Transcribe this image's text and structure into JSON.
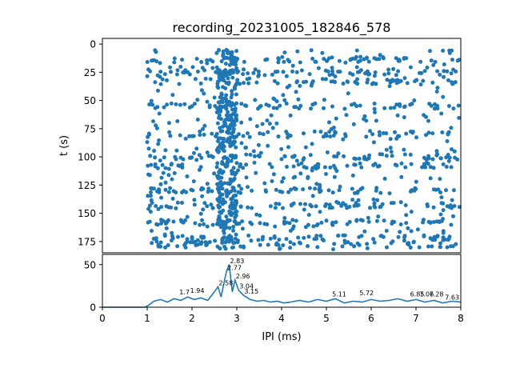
{
  "colors": {
    "series": "#1f77b4",
    "axis": "#000000",
    "background": "#ffffff"
  },
  "chart_data": [
    {
      "type": "scatter",
      "title": "recording_20231005_182846_578",
      "xlabel": "",
      "ylabel": "t (s)",
      "xlim": [
        0,
        8
      ],
      "ylim": [
        185,
        -5
      ],
      "y_inverted": true,
      "yticks": [
        "0",
        "25",
        "50",
        "75",
        "100",
        "125",
        "150",
        "175"
      ],
      "grid": false,
      "legend": "none",
      "x_range_of_points": [
        1,
        8
      ],
      "bands_t": [
        14,
        25,
        33,
        55,
        80,
        100,
        108,
        130,
        143,
        158,
        172,
        178
      ],
      "dense_x_window": [
        2.55,
        3.0
      ]
    },
    {
      "type": "line",
      "xlabel": "IPI (ms)",
      "ylabel": "",
      "xlim": [
        0,
        8
      ],
      "ylim": [
        0,
        62
      ],
      "xticks": [
        "0",
        "1",
        "2",
        "3",
        "4",
        "5",
        "6",
        "7",
        "8"
      ],
      "yticks": [
        "0",
        "50"
      ],
      "grid": false,
      "legend": "none",
      "x": [
        0,
        0.5,
        0.95,
        1.05,
        1.15,
        1.3,
        1.45,
        1.6,
        1.75,
        1.9,
        2.05,
        2.2,
        2.35,
        2.5,
        2.58,
        2.65,
        2.72,
        2.77,
        2.83,
        2.9,
        2.96,
        3.04,
        3.15,
        3.3,
        3.45,
        3.6,
        3.75,
        3.9,
        4.05,
        4.2,
        4.4,
        4.6,
        4.8,
        5.0,
        5.2,
        5.4,
        5.6,
        5.8,
        6.0,
        6.2,
        6.4,
        6.6,
        6.8,
        7.0,
        7.2,
        7.4,
        7.6,
        7.8,
        8.0
      ],
      "y": [
        0,
        0,
        0,
        3,
        7,
        9,
        6,
        10,
        8,
        12,
        9,
        11,
        8,
        18,
        24,
        12,
        30,
        42,
        50,
        18,
        32,
        20,
        14,
        9,
        7,
        8,
        6,
        7,
        5,
        6,
        8,
        6,
        9,
        7,
        10,
        5,
        7,
        6,
        9,
        7,
        8,
        10,
        7,
        9,
        6,
        8,
        5,
        7,
        6
      ],
      "peak_labels": [
        {
          "x": 2.83,
          "y": 50,
          "label": "2.83"
        },
        {
          "x": 2.77,
          "y": 42,
          "label": "2.77"
        },
        {
          "x": 2.96,
          "y": 32,
          "label": "2.96"
        },
        {
          "x": 2.58,
          "y": 24,
          "label": "2.58"
        },
        {
          "x": 3.04,
          "y": 20,
          "label": "3.04"
        },
        {
          "x": 3.15,
          "y": 14,
          "label": "3.15"
        },
        {
          "x": 1.7,
          "y": 13,
          "label": "1.7"
        },
        {
          "x": 1.94,
          "y": 15,
          "label": "1.94"
        },
        {
          "x": 5.11,
          "y": 11,
          "label": "5.11"
        },
        {
          "x": 5.72,
          "y": 12,
          "label": "5.72"
        },
        {
          "x": 6.85,
          "y": 11,
          "label": "6.85"
        },
        {
          "x": 7.06,
          "y": 11,
          "label": "7.06"
        },
        {
          "x": 7.28,
          "y": 11,
          "label": "7.28"
        },
        {
          "x": 7.63,
          "y": 7,
          "label": "7.63"
        }
      ]
    }
  ]
}
